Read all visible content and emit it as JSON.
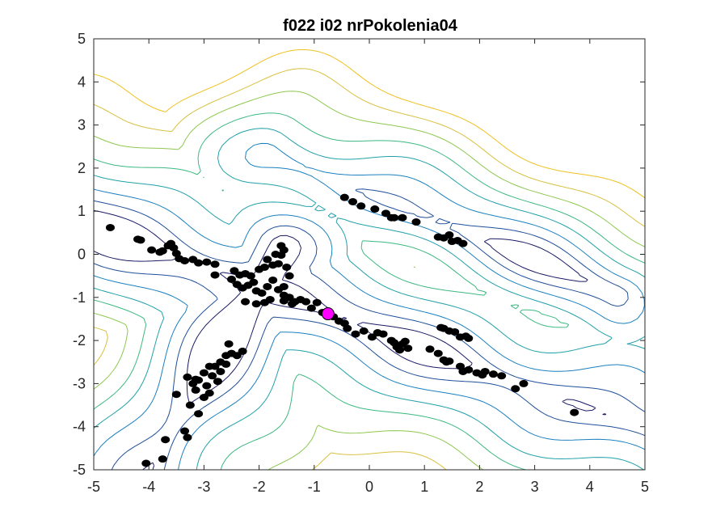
{
  "chart_data": {
    "type": "scatter",
    "title": "f022 i02 nrPokolenia04",
    "xlabel": "",
    "ylabel": "",
    "xlim": [
      -5,
      5
    ],
    "ylim": [
      -5,
      5
    ],
    "xticks": [
      -5,
      -4,
      -3,
      -2,
      -1,
      0,
      1,
      2,
      3,
      4,
      5
    ],
    "yticks": [
      -5,
      -4,
      -3,
      -2,
      -1,
      0,
      1,
      2,
      3,
      4,
      5
    ],
    "grid": false,
    "background": "contour",
    "contour_colors": [
      "#1a1a66",
      "#1f4f9a",
      "#1a80c0",
      "#20a0a8",
      "#3cb880",
      "#8ec850",
      "#d8c040",
      "#f0c020"
    ],
    "points_color": "#000000",
    "best_point_color": "#ff00ff",
    "best_point": {
      "x": -0.75,
      "y": -1.38
    },
    "points": [
      [
        -4.7,
        0.62
      ],
      [
        -4.2,
        0.35
      ],
      [
        -4.15,
        0.33
      ],
      [
        -3.95,
        0.1
      ],
      [
        -3.8,
        0.05
      ],
      [
        -3.75,
        0.08
      ],
      [
        -3.65,
        0.2
      ],
      [
        -3.6,
        0.25
      ],
      [
        -3.55,
        0.15
      ],
      [
        -3.5,
        0.02
      ],
      [
        -3.45,
        -0.1
      ],
      [
        -3.35,
        -0.15
      ],
      [
        -3.2,
        -0.12
      ],
      [
        -3.1,
        -0.2
      ],
      [
        -2.95,
        -0.18
      ],
      [
        -2.8,
        -0.23
      ],
      [
        -2.8,
        -0.48
      ],
      [
        -0.45,
        1.32
      ],
      [
        -0.3,
        1.22
      ],
      [
        -0.15,
        1.12
      ],
      [
        0.1,
        1.05
      ],
      [
        0.3,
        0.95
      ],
      [
        0.4,
        0.85
      ],
      [
        0.45,
        0.85
      ],
      [
        0.6,
        0.85
      ],
      [
        0.85,
        0.75
      ],
      [
        1.25,
        0.4
      ],
      [
        1.35,
        0.38
      ],
      [
        1.45,
        0.45
      ],
      [
        1.5,
        0.3
      ],
      [
        1.6,
        0.32
      ],
      [
        1.7,
        0.25
      ],
      [
        -2.45,
        -0.38
      ],
      [
        -2.35,
        -0.48
      ],
      [
        -2.25,
        -0.45
      ],
      [
        -2.15,
        -0.5
      ],
      [
        -2.0,
        -0.35
      ],
      [
        -1.9,
        -0.3
      ],
      [
        -1.85,
        -0.12
      ],
      [
        -1.75,
        -0.25
      ],
      [
        -1.65,
        -0.22
      ],
      [
        -1.55,
        0.1
      ],
      [
        -1.6,
        -0.02
      ],
      [
        -1.5,
        -0.3
      ],
      [
        -1.45,
        -0.5
      ],
      [
        -1.55,
        -0.75
      ],
      [
        -1.6,
        0.2
      ],
      [
        -1.7,
        0.0
      ],
      [
        -2.5,
        -0.58
      ],
      [
        -2.4,
        -0.7
      ],
      [
        -2.3,
        -0.78
      ],
      [
        -2.2,
        -0.72
      ],
      [
        -2.1,
        -0.65
      ],
      [
        -2.05,
        -0.85
      ],
      [
        -1.95,
        -0.9
      ],
      [
        -1.85,
        -0.75
      ],
      [
        -1.8,
        -1.05
      ],
      [
        -1.75,
        -0.6
      ],
      [
        -1.65,
        -0.82
      ],
      [
        -1.55,
        -0.95
      ],
      [
        -1.45,
        -1.0
      ],
      [
        -1.35,
        -1.1
      ],
      [
        -1.25,
        -1.05
      ],
      [
        -1.15,
        -1.1
      ],
      [
        -1.05,
        -1.25
      ],
      [
        -0.95,
        -1.12
      ],
      [
        -2.25,
        -1.1
      ],
      [
        -2.05,
        -1.15
      ],
      [
        -1.9,
        -1.12
      ],
      [
        -1.55,
        -1.08
      ],
      [
        -1.4,
        -1.15
      ],
      [
        -0.85,
        -1.35
      ],
      [
        -0.65,
        -1.45
      ],
      [
        -0.55,
        -1.55
      ],
      [
        -0.45,
        -1.6
      ],
      [
        -0.4,
        -1.72
      ],
      [
        -0.25,
        -1.85
      ],
      [
        -0.1,
        -1.78
      ],
      [
        0.05,
        -1.92
      ],
      [
        0.15,
        -1.82
      ],
      [
        0.25,
        -1.85
      ],
      [
        0.4,
        -2.0
      ],
      [
        0.45,
        -2.05
      ],
      [
        0.5,
        -2.15
      ],
      [
        0.55,
        -2.22
      ],
      [
        0.6,
        -2.08
      ],
      [
        0.65,
        -2.02
      ],
      [
        0.7,
        -2.18
      ],
      [
        1.1,
        -2.2
      ],
      [
        1.25,
        -2.3
      ],
      [
        1.35,
        -2.45
      ],
      [
        1.4,
        -2.5
      ],
      [
        1.45,
        -2.48
      ],
      [
        1.65,
        -2.6
      ],
      [
        1.7,
        -2.72
      ],
      [
        1.8,
        -2.68
      ],
      [
        1.95,
        -2.75
      ],
      [
        2.05,
        -2.8
      ],
      [
        2.1,
        -2.72
      ],
      [
        2.25,
        -2.78
      ],
      [
        2.4,
        -2.82
      ],
      [
        2.65,
        -3.12
      ],
      [
        2.8,
        -3.0
      ],
      [
        3.72,
        -3.67
      ],
      [
        1.3,
        -1.7
      ],
      [
        1.35,
        -1.72
      ],
      [
        1.45,
        -1.78
      ],
      [
        1.55,
        -1.8
      ],
      [
        1.65,
        -1.92
      ],
      [
        1.75,
        -1.9
      ],
      [
        1.8,
        -1.95
      ],
      [
        -2.5,
        -2.3
      ],
      [
        -2.6,
        -2.35
      ],
      [
        -2.7,
        -2.5
      ],
      [
        -2.9,
        -2.6
      ],
      [
        -2.8,
        -2.6
      ],
      [
        -2.85,
        -2.82
      ],
      [
        -3.0,
        -2.75
      ],
      [
        -3.1,
        -2.92
      ],
      [
        -3.15,
        -2.9
      ],
      [
        -3.2,
        -3.0
      ],
      [
        -3.3,
        -2.85
      ],
      [
        -2.95,
        -3.05
      ],
      [
        -2.9,
        -3.22
      ],
      [
        -3.0,
        -3.32
      ],
      [
        -3.15,
        -3.15
      ],
      [
        -3.25,
        -3.5
      ],
      [
        -3.1,
        -3.7
      ],
      [
        -3.35,
        -4.1
      ],
      [
        -3.3,
        -4.25
      ],
      [
        -3.5,
        -3.25
      ],
      [
        -3.7,
        -4.3
      ],
      [
        -3.75,
        -4.75
      ],
      [
        -4.05,
        -4.85
      ],
      [
        -2.75,
        -2.95
      ],
      [
        -2.7,
        -2.72
      ],
      [
        -2.6,
        -2.55
      ],
      [
        -2.4,
        -2.35
      ],
      [
        -2.3,
        -2.25
      ],
      [
        -2.55,
        -2.08
      ]
    ]
  }
}
